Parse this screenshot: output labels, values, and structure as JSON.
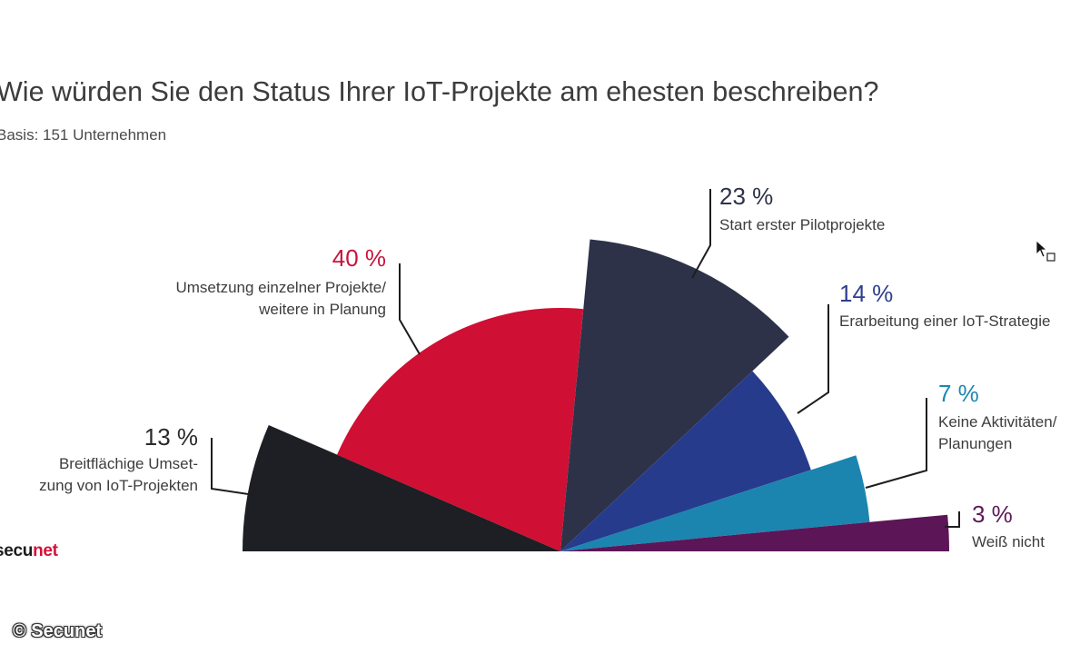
{
  "title": "Wie würden Sie den Status Ihrer IoT-Projekte am ehesten beschreiben?",
  "subtitle": "Basis: 151 Unternehmen",
  "brand": {
    "prefix": "secu",
    "accent": "net"
  },
  "copyright": "© Secunet",
  "chart_data": {
    "type": "pie",
    "variant": "semicircle, radius proportional to value",
    "slices": [
      {
        "value": 13,
        "pct_label": "13 %",
        "label_lines": [
          "Breitflächige Umset-",
          "zung von IoT-Projekten"
        ],
        "color": "#1e1f24"
      },
      {
        "value": 40,
        "pct_label": "40 %",
        "label_lines": [
          "Umsetzung einzelner Projekte/",
          "weitere in Planung"
        ],
        "color": "#cf0f33"
      },
      {
        "value": 23,
        "pct_label": "23 %",
        "label_lines": [
          "Start erster Pilotprojekte"
        ],
        "color": "#2d3249"
      },
      {
        "value": 14,
        "pct_label": "14 %",
        "label_lines": [
          "Erarbeitung einer IoT-Strategie"
        ],
        "color": "#273b8c"
      },
      {
        "value": 7,
        "pct_label": "7 %",
        "label_lines": [
          "Keine Aktivitäten/",
          "Planungen"
        ],
        "color": "#1b85b0"
      },
      {
        "value": 3,
        "pct_label": "3 %",
        "label_lines": [
          "Weiß nicht"
        ],
        "color": "#5c1557"
      }
    ],
    "pct_colors": [
      "#2a2a2a",
      "#c8143a",
      "#2d3249",
      "#2e3f8e",
      "#1c88b3",
      "#5e1b58"
    ]
  }
}
